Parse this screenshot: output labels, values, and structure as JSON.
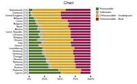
{
  "chart_data": {
    "type": "bar",
    "title": "Chart",
    "orientation": "horizontal",
    "stacked": true,
    "categories": [
      "Netherlands (1%)",
      "Denmark (1%)",
      "United Kingdom (2%)",
      "Belgium (4%)",
      "Latvia (1%)",
      "Bulgaria (3%)",
      "Spain (7%)",
      "Austria (1%)",
      "Czech Republic (3%)",
      "Lithuania (1%)",
      "Hungary (3%)",
      "Ukraine (1%)",
      "Italy (3%)",
      "Greece (2%)",
      "Luxembourg (1%)",
      "Germany (5%)",
      "Germany (5%)",
      "Portugal (1%)",
      "Slovakia (2%)",
      "Romania (3%)",
      "Ireland (1%)",
      "Estonia (1%)",
      "Romania (3%)",
      "Cyprus (4%)"
    ],
    "series": [
      {
        "name": "Favourable",
        "color": "#4a7a28",
        "values": [
          6,
          3,
          4,
          8,
          10,
          12,
          15,
          14,
          18,
          16,
          18,
          14,
          20,
          16,
          22,
          22,
          22,
          26,
          28,
          28,
          32,
          32,
          48,
          52
        ]
      },
      {
        "name": "Unknown",
        "color": "#a8a890",
        "values": [
          2,
          2,
          3,
          5,
          3,
          3,
          4,
          8,
          8,
          4,
          4,
          14,
          4,
          3,
          4,
          4,
          4,
          4,
          4,
          4,
          4,
          4,
          3,
          2
        ]
      },
      {
        "name": "Unfavourable - Inadequate",
        "color": "#e8a020",
        "values": [
          52,
          47,
          45,
          40,
          50,
          50,
          45,
          45,
          42,
          48,
          46,
          44,
          44,
          50,
          48,
          46,
          46,
          44,
          42,
          42,
          40,
          40,
          34,
          30
        ]
      },
      {
        "name": "Unfavourable - Bad",
        "color": "#b01040",
        "values": [
          40,
          48,
          48,
          47,
          37,
          35,
          36,
          33,
          32,
          32,
          32,
          28,
          32,
          31,
          26,
          28,
          28,
          26,
          26,
          26,
          24,
          24,
          15,
          16
        ]
      }
    ],
    "xlim": [
      0,
      100
    ],
    "xticks": [
      {
        "value": 0,
        "label": "0%"
      },
      {
        "value": 25,
        "label": "25%"
      },
      {
        "value": 50,
        "label": "50%"
      },
      {
        "value": 75,
        "label": "75%"
      },
      {
        "value": 100,
        "label": "100%"
      }
    ],
    "grid": true,
    "legend": "upper right"
  }
}
